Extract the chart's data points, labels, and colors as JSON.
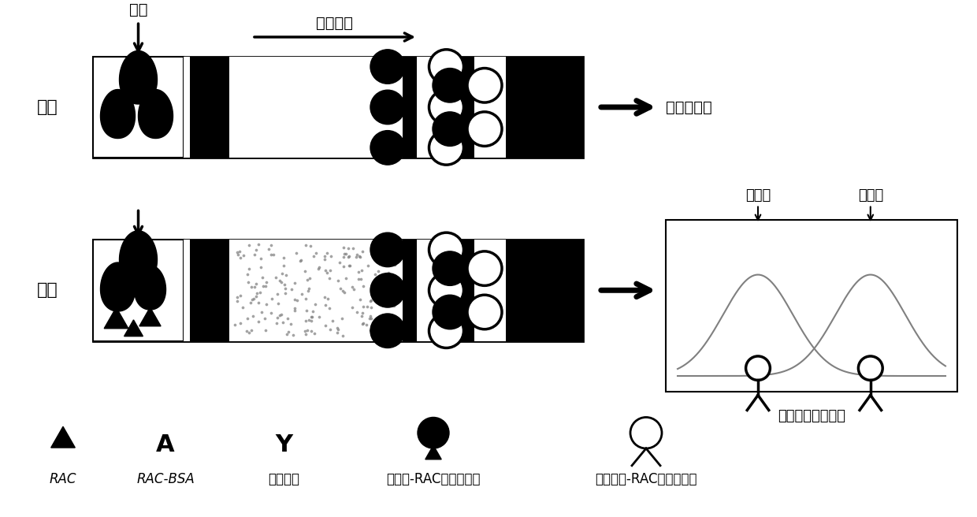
{
  "bg_color": "#ffffff",
  "label_neg": "阴性",
  "label_pos": "阳性",
  "label_jiyang": "加样",
  "label_fangxiang": "层析方向",
  "label_result_neg": "结果为阴性",
  "label_jiance": "检测线",
  "label_zhikong": "质控线",
  "label_yiqi": "仪器读取阳性数据",
  "legend_rac": "RAC",
  "legend_racbsa": "RAC-BSA",
  "legend_kser": "抗鼠二抗",
  "legend_gold": "胶体金-RAC抗体复合物",
  "legend_fluor": "荧光微球-RAC抗体复合物"
}
